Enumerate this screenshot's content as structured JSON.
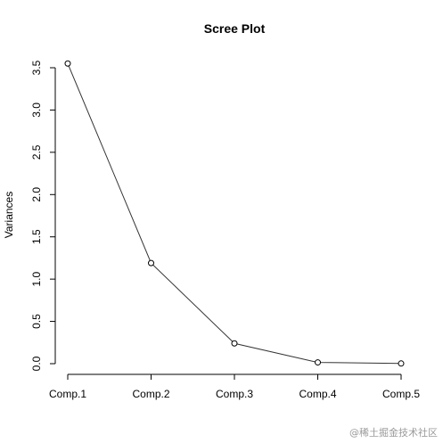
{
  "chart_data": {
    "type": "line",
    "title": "Scree Plot",
    "xlabel": "",
    "ylabel": "Variances",
    "categories": [
      "Comp.1",
      "Comp.2",
      "Comp.3",
      "Comp.4",
      "Comp.5"
    ],
    "series": [
      {
        "values": [
          3.55,
          1.19,
          0.24,
          0.015,
          0.002
        ]
      }
    ],
    "ylim": [
      0,
      3.5
    ],
    "yticks": [
      "0.0",
      "0.5",
      "1.0",
      "1.5",
      "2.0",
      "2.5",
      "3.0",
      "3.5"
    ],
    "markers": "open-circle",
    "grid": false,
    "legend": "none"
  },
  "watermark": "@稀土掘金技术社区"
}
